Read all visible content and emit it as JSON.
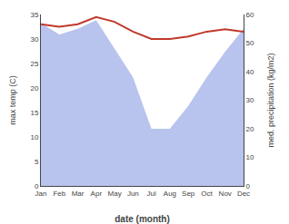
{
  "chart_data": {
    "type": "line",
    "categories": [
      "Jan",
      "Feb",
      "Mar",
      "Apr",
      "May",
      "Jun",
      "Jul",
      "Aug",
      "Sep",
      "Oct",
      "Nov",
      "Dec"
    ],
    "xlabel": "date (month)",
    "ylabel": "max temp (C)",
    "y2label": "med. precipitation (kg/m2)",
    "series": [
      {
        "type": "area",
        "axis": "y2",
        "color": "#b8c4ee",
        "values": [
          57,
          53,
          55,
          58,
          48,
          38,
          20,
          20,
          28,
          38,
          47,
          55
        ]
      },
      {
        "type": "line",
        "color": "#c0392b",
        "values": [
          33.0,
          32.5,
          33.0,
          34.5,
          33.5,
          31.5,
          30.0,
          30.0,
          30.5,
          31.5,
          32.0,
          31.5
        ]
      }
    ],
    "ylim": [
      0,
      35
    ],
    "yticks": [
      0,
      5,
      10,
      15,
      20,
      25,
      30,
      35
    ],
    "y2lim": [
      0,
      60
    ],
    "y2ticks": [
      0,
      10,
      20,
      30,
      40,
      50,
      60
    ],
    "grid": false
  }
}
